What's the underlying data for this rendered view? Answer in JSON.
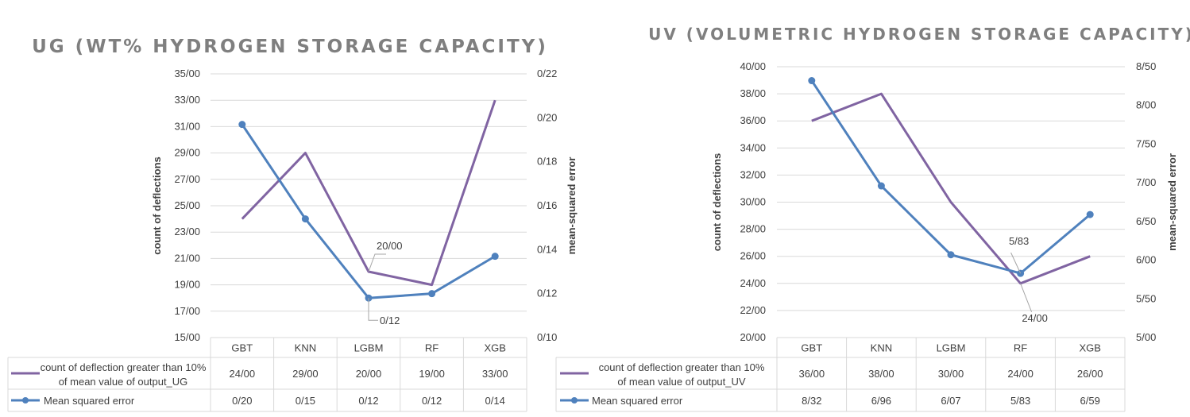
{
  "colors": {
    "count_series": "#8064a2",
    "mse_series": "#4f81bd",
    "grid": "#d9d9d9",
    "text": "#404040",
    "title": "#7f7f7f"
  },
  "chart_data": [
    {
      "type": "line",
      "title": "UG (WT% HYDROGEN STORAGE CAPACITY)",
      "ylabel": "count of deflections",
      "y2label": "mean-squared error",
      "categories": [
        "GBT",
        "KNN",
        "LGBM",
        "RF",
        "XGB"
      ],
      "ylim": [
        15,
        35
      ],
      "yticks": [
        "15/00",
        "17/00",
        "19/00",
        "21/00",
        "23/00",
        "25/00",
        "27/00",
        "29/00",
        "31/00",
        "33/00",
        "35/00"
      ],
      "y2lim": [
        0.1,
        0.22
      ],
      "y2ticks": [
        "0/10",
        "0/12",
        "0/14",
        "0/16",
        "0/18",
        "0/20",
        "0/22"
      ],
      "series": [
        {
          "name": "count of deflection greater than 10% of  mean value of output_UG",
          "axis": "left",
          "values": [
            24,
            29,
            20,
            19,
            33
          ],
          "labels": [
            "24/00",
            "29/00",
            "20/00",
            "19/00",
            "33/00"
          ]
        },
        {
          "name": "Mean squared error",
          "axis": "right",
          "values": [
            0.197,
            0.154,
            0.118,
            0.12,
            0.137
          ],
          "labels": [
            "0/20",
            "0/15",
            "0/12",
            "0/12",
            "0/14"
          ]
        }
      ],
      "annotations": [
        {
          "text": "20/00",
          "series": 0,
          "index": 2
        },
        {
          "text": "0/12",
          "series": 1,
          "index": 2
        }
      ]
    },
    {
      "type": "line",
      "title": "UV (VOLUMETRIC HYDROGEN STORAGE CAPACITY)",
      "ylabel": "count of deflections",
      "y2label": "mean-squared error",
      "categories": [
        "GBT",
        "KNN",
        "LGBM",
        "RF",
        "XGB"
      ],
      "ylim": [
        20,
        40
      ],
      "yticks": [
        "20/00",
        "22/00",
        "24/00",
        "26/00",
        "28/00",
        "30/00",
        "32/00",
        "34/00",
        "36/00",
        "38/00",
        "40/00"
      ],
      "y2lim": [
        5.0,
        8.5
      ],
      "y2ticks": [
        "5/00",
        "5/50",
        "6/00",
        "6/50",
        "7/00",
        "7/50",
        "8/00",
        "8/50"
      ],
      "series": [
        {
          "name": "count of deflection greater than 10%\nof  mean value of output_UV",
          "axis": "left",
          "values": [
            36,
            38,
            30,
            24,
            26
          ],
          "labels": [
            "36/00",
            "38/00",
            "30/00",
            "24/00",
            "26/00"
          ]
        },
        {
          "name": "Mean squared error",
          "axis": "right",
          "values": [
            8.32,
            6.96,
            6.07,
            5.83,
            6.59
          ],
          "labels": [
            "8/32",
            "6/96",
            "6/07",
            "5/83",
            "6/59"
          ]
        }
      ],
      "annotations": [
        {
          "text": "5/83",
          "series": 1,
          "index": 3
        },
        {
          "text": "24/00",
          "series": 0,
          "index": 3
        }
      ]
    }
  ]
}
